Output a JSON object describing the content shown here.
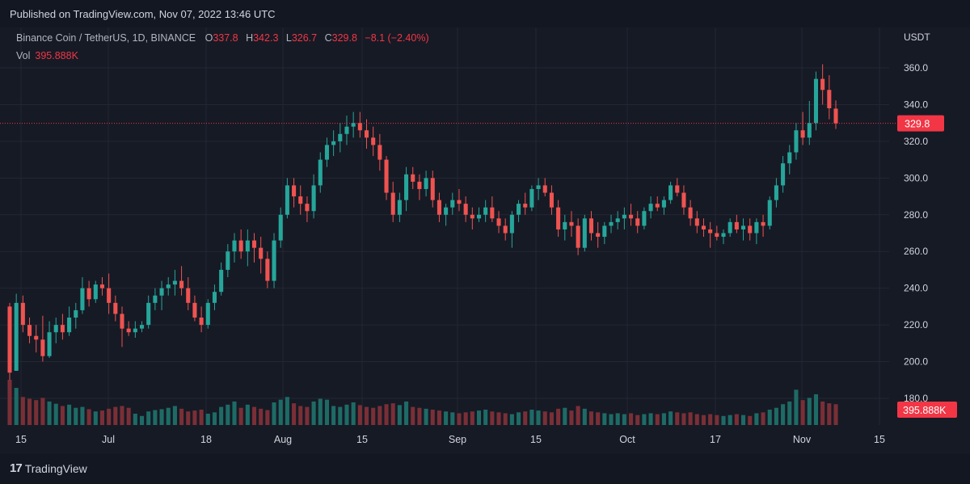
{
  "published": "Published on TradingView.com, Nov 07, 2022 13:46 UTC",
  "brand": "TradingView",
  "header": {
    "symbol": "Binance Coin / TetherUS, 1D, BINANCE",
    "open_label": "O",
    "open": "337.8",
    "high_label": "H",
    "high": "342.3",
    "low_label": "L",
    "low": "326.7",
    "close_label": "C",
    "close": "329.8",
    "change": "−8.1 (−2.40%)",
    "vol_label": "Vol",
    "vol": "395.888K"
  },
  "colors": {
    "up": "#26a69a",
    "down": "#ef5350",
    "up_vol": "#1e6b66",
    "down_vol": "#7a2f36",
    "badge": "#f23645",
    "grid": "#232733"
  },
  "chart_data": {
    "type": "candlestick",
    "currency_label": "USDT",
    "y_ticks": [
      "360.0",
      "340.0",
      "320.0",
      "300.0",
      "280.0",
      "260.0",
      "240.0",
      "220.0",
      "200.0",
      "180.0"
    ],
    "ylim": [
      170,
      370
    ],
    "x_ticks": [
      "15",
      "Jul",
      "18",
      "Aug",
      "15",
      "Sep",
      "15",
      "Oct",
      "17",
      "Nov",
      "15"
    ],
    "last_price_label": "329.8",
    "last_volume_label": "395.888K",
    "last_price": 329.8,
    "candles": [
      [
        230,
        232,
        190,
        194,
        1.0
      ],
      [
        195,
        237,
        195,
        232,
        0.82
      ],
      [
        232,
        236,
        216,
        220,
        0.62
      ],
      [
        220,
        224,
        210,
        214,
        0.58
      ],
      [
        214,
        220,
        205,
        212,
        0.55
      ],
      [
        212,
        225,
        200,
        203,
        0.6
      ],
      [
        203,
        222,
        202,
        216,
        0.52
      ],
      [
        216,
        224,
        210,
        220,
        0.47
      ],
      [
        220,
        226,
        212,
        216,
        0.42
      ],
      [
        216,
        230,
        214,
        224,
        0.45
      ],
      [
        224,
        232,
        218,
        228,
        0.38
      ],
      [
        228,
        246,
        226,
        240,
        0.4
      ],
      [
        240,
        244,
        230,
        234,
        0.35
      ],
      [
        234,
        244,
        232,
        242,
        0.3
      ],
      [
        242,
        246,
        236,
        240,
        0.32
      ],
      [
        240,
        248,
        226,
        232,
        0.36
      ],
      [
        232,
        236,
        222,
        226,
        0.4
      ],
      [
        226,
        230,
        208,
        218,
        0.42
      ],
      [
        218,
        222,
        214,
        216,
        0.38
      ],
      [
        216,
        222,
        213,
        218,
        0.25
      ],
      [
        218,
        222,
        216,
        220,
        0.2
      ],
      [
        220,
        236,
        218,
        232,
        0.3
      ],
      [
        232,
        240,
        228,
        236,
        0.33
      ],
      [
        236,
        244,
        228,
        240,
        0.35
      ],
      [
        240,
        246,
        236,
        242,
        0.38
      ],
      [
        242,
        250,
        236,
        244,
        0.42
      ],
      [
        244,
        252,
        236,
        240,
        0.36
      ],
      [
        240,
        246,
        228,
        232,
        0.3
      ],
      [
        232,
        236,
        222,
        224,
        0.32
      ],
      [
        224,
        230,
        216,
        220,
        0.34
      ],
      [
        220,
        234,
        218,
        232,
        0.25
      ],
      [
        232,
        242,
        228,
        238,
        0.28
      ],
      [
        238,
        254,
        236,
        250,
        0.4
      ],
      [
        250,
        264,
        246,
        260,
        0.45
      ],
      [
        260,
        270,
        254,
        266,
        0.52
      ],
      [
        266,
        272,
        256,
        260,
        0.38
      ],
      [
        260,
        272,
        252,
        266,
        0.45
      ],
      [
        266,
        270,
        254,
        262,
        0.4
      ],
      [
        262,
        268,
        248,
        256,
        0.36
      ],
      [
        256,
        260,
        240,
        244,
        0.33
      ],
      [
        244,
        270,
        240,
        266,
        0.5
      ],
      [
        266,
        284,
        262,
        280,
        0.56
      ],
      [
        280,
        300,
        278,
        296,
        0.62
      ],
      [
        296,
        300,
        284,
        290,
        0.48
      ],
      [
        290,
        296,
        280,
        286,
        0.42
      ],
      [
        286,
        290,
        276,
        282,
        0.4
      ],
      [
        282,
        302,
        278,
        296,
        0.52
      ],
      [
        296,
        314,
        292,
        310,
        0.58
      ],
      [
        310,
        322,
        306,
        318,
        0.56
      ],
      [
        318,
        326,
        312,
        320,
        0.42
      ],
      [
        320,
        330,
        314,
        324,
        0.4
      ],
      [
        324,
        334,
        318,
        328,
        0.45
      ],
      [
        328,
        336,
        322,
        330,
        0.5
      ],
      [
        330,
        336,
        322,
        326,
        0.44
      ],
      [
        326,
        332,
        316,
        322,
        0.4
      ],
      [
        322,
        328,
        312,
        318,
        0.38
      ],
      [
        318,
        324,
        304,
        310,
        0.42
      ],
      [
        310,
        312,
        288,
        292,
        0.46
      ],
      [
        292,
        298,
        276,
        280,
        0.48
      ],
      [
        280,
        292,
        276,
        288,
        0.44
      ],
      [
        288,
        306,
        282,
        302,
        0.52
      ],
      [
        302,
        306,
        294,
        298,
        0.4
      ],
      [
        298,
        302,
        288,
        294,
        0.38
      ],
      [
        294,
        304,
        290,
        300,
        0.36
      ],
      [
        300,
        304,
        284,
        288,
        0.34
      ],
      [
        288,
        292,
        276,
        280,
        0.32
      ],
      [
        280,
        286,
        274,
        284,
        0.3
      ],
      [
        284,
        292,
        280,
        288,
        0.28
      ],
      [
        288,
        294,
        282,
        286,
        0.26
      ],
      [
        286,
        290,
        276,
        280,
        0.28
      ],
      [
        280,
        284,
        272,
        278,
        0.3
      ],
      [
        278,
        284,
        276,
        280,
        0.32
      ],
      [
        280,
        288,
        276,
        284,
        0.34
      ],
      [
        284,
        290,
        276,
        278,
        0.3
      ],
      [
        278,
        282,
        270,
        274,
        0.28
      ],
      [
        274,
        278,
        266,
        270,
        0.26
      ],
      [
        270,
        282,
        262,
        280,
        0.24
      ],
      [
        280,
        288,
        276,
        286,
        0.28
      ],
      [
        286,
        292,
        280,
        284,
        0.3
      ],
      [
        284,
        296,
        282,
        294,
        0.34
      ],
      [
        294,
        300,
        288,
        296,
        0.32
      ],
      [
        296,
        300,
        290,
        292,
        0.3
      ],
      [
        292,
        296,
        280,
        284,
        0.28
      ],
      [
        284,
        288,
        268,
        272,
        0.36
      ],
      [
        272,
        280,
        266,
        276,
        0.38
      ],
      [
        276,
        282,
        268,
        274,
        0.32
      ],
      [
        274,
        278,
        258,
        262,
        0.42
      ],
      [
        262,
        280,
        260,
        278,
        0.36
      ],
      [
        278,
        282,
        266,
        270,
        0.3
      ],
      [
        270,
        276,
        262,
        268,
        0.28
      ],
      [
        268,
        276,
        264,
        274,
        0.26
      ],
      [
        274,
        280,
        270,
        276,
        0.24
      ],
      [
        276,
        282,
        272,
        278,
        0.26
      ],
      [
        278,
        284,
        272,
        280,
        0.24
      ],
      [
        280,
        286,
        274,
        278,
        0.26
      ],
      [
        278,
        282,
        270,
        274,
        0.22
      ],
      [
        274,
        284,
        272,
        282,
        0.24
      ],
      [
        282,
        290,
        278,
        286,
        0.26
      ],
      [
        286,
        290,
        282,
        284,
        0.24
      ],
      [
        284,
        290,
        280,
        288,
        0.26
      ],
      [
        288,
        298,
        286,
        296,
        0.3
      ],
      [
        296,
        300,
        290,
        292,
        0.28
      ],
      [
        292,
        296,
        280,
        284,
        0.26
      ],
      [
        284,
        288,
        274,
        278,
        0.28
      ],
      [
        278,
        282,
        270,
        274,
        0.24
      ],
      [
        274,
        278,
        268,
        272,
        0.22
      ],
      [
        272,
        276,
        262,
        270,
        0.24
      ],
      [
        270,
        274,
        266,
        268,
        0.22
      ],
      [
        268,
        272,
        264,
        270,
        0.2
      ],
      [
        270,
        278,
        268,
        276,
        0.22
      ],
      [
        276,
        280,
        270,
        272,
        0.24
      ],
      [
        272,
        278,
        266,
        274,
        0.22
      ],
      [
        274,
        278,
        266,
        270,
        0.2
      ],
      [
        270,
        278,
        264,
        276,
        0.26
      ],
      [
        276,
        280,
        268,
        274,
        0.28
      ],
      [
        274,
        290,
        272,
        288,
        0.34
      ],
      [
        288,
        300,
        284,
        296,
        0.38
      ],
      [
        296,
        312,
        292,
        308,
        0.46
      ],
      [
        308,
        318,
        302,
        314,
        0.52
      ],
      [
        314,
        330,
        310,
        326,
        0.78
      ],
      [
        326,
        336,
        318,
        322,
        0.55
      ],
      [
        322,
        342,
        318,
        330,
        0.6
      ],
      [
        330,
        358,
        326,
        354,
        0.68
      ],
      [
        354,
        362,
        340,
        348,
        0.52
      ],
      [
        348,
        356,
        332,
        338,
        0.48
      ],
      [
        337.8,
        342.3,
        326.7,
        329.8,
        0.46
      ]
    ]
  }
}
